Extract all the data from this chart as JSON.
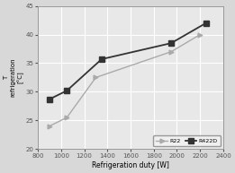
{
  "xlabel": "Refrigeration duty [W]",
  "ylabel": "T\nrefrigeration\n[°C]",
  "xlim": [
    800,
    2400
  ],
  "ylim": [
    20,
    45
  ],
  "xticks": [
    800,
    1000,
    1200,
    1400,
    1600,
    1800,
    2000,
    2200,
    2400
  ],
  "yticks": [
    20,
    25,
    30,
    35,
    40,
    45
  ],
  "R22_x": [
    900,
    1050,
    1300,
    1950,
    2200
  ],
  "R22_y": [
    24.0,
    25.5,
    32.5,
    37.0,
    40.0
  ],
  "R422D_x": [
    900,
    1050,
    1350,
    1950,
    2250
  ],
  "R422D_y": [
    28.7,
    30.2,
    35.7,
    38.5,
    42.0
  ],
  "R22_color": "#aaaaaa",
  "R422D_color": "#333333",
  "plot_bg_color": "#e8e8e8",
  "fig_bg_color": "#d8d8d8",
  "grid_color": "#ffffff",
  "spine_color": "#999999",
  "legend_labels": [
    "R22",
    "R422D"
  ],
  "legend_edge_color": "#999999",
  "legend_bg": "#f0f0f0"
}
